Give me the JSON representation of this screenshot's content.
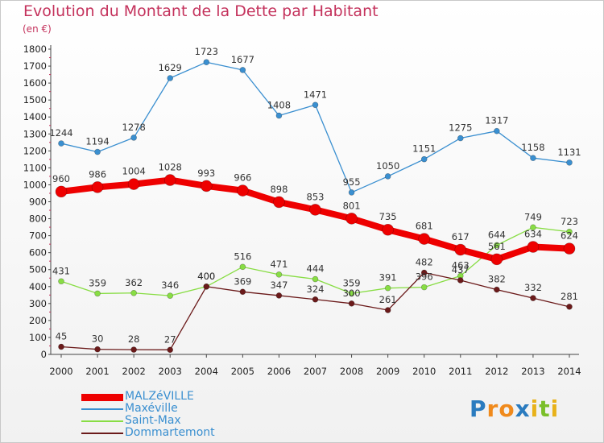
{
  "title": "Evolution du Montant de la Dette par Habitant",
  "unit": "(en €)",
  "logo": {
    "letters": [
      {
        "ch": "P",
        "color": "#2a7bbf"
      },
      {
        "ch": "r",
        "color": "#f08a1c"
      },
      {
        "ch": "o",
        "color": "#f08a1c"
      },
      {
        "ch": "x",
        "color": "#2a7bbf"
      },
      {
        "ch": "i",
        "color": "#e8b21a"
      },
      {
        "ch": "t",
        "color": "#7bbf2a"
      },
      {
        "ch": "i",
        "color": "#e8b21a"
      }
    ]
  },
  "chart_data": {
    "type": "line",
    "x": [
      "2000",
      "2001",
      "2002",
      "2003",
      "2004",
      "2005",
      "2006",
      "2007",
      "2008",
      "2009",
      "2010",
      "2011",
      "2012",
      "2013",
      "2014"
    ],
    "ylim": [
      0,
      1800
    ],
    "yticks": [
      0,
      100,
      200,
      300,
      400,
      500,
      600,
      700,
      800,
      900,
      1000,
      1100,
      1200,
      1300,
      1400,
      1500,
      1600,
      1700,
      1800
    ],
    "grid": false,
    "legend": "bottom-left",
    "series": [
      {
        "name": "MALZéVILLE",
        "color": "#ee0000",
        "width": 8,
        "marker": 7,
        "values": [
          960,
          986,
          1004,
          1028,
          993,
          966,
          898,
          853,
          801,
          735,
          681,
          617,
          561,
          634,
          624
        ]
      },
      {
        "name": "Maxéville",
        "color": "#3a8fd0",
        "width": 1.3,
        "marker": 3.5,
        "values": [
          1244,
          1194,
          1278,
          1629,
          1723,
          1677,
          1408,
          1471,
          955,
          1050,
          1151,
          1275,
          1317,
          1158,
          1131
        ]
      },
      {
        "name": "Saint-Max",
        "color": "#88dd44",
        "width": 1.3,
        "marker": 3.5,
        "values": [
          431,
          359,
          362,
          346,
          400,
          516,
          471,
          444,
          359,
          391,
          396,
          463,
          644,
          749,
          723
        ]
      },
      {
        "name": "Dommartemont",
        "color": "#6b1a1a",
        "width": 1.3,
        "marker": 3.5,
        "values": [
          45,
          30,
          28,
          27,
          400,
          369,
          347,
          324,
          300,
          261,
          482,
          437,
          382,
          332,
          281
        ]
      }
    ]
  }
}
